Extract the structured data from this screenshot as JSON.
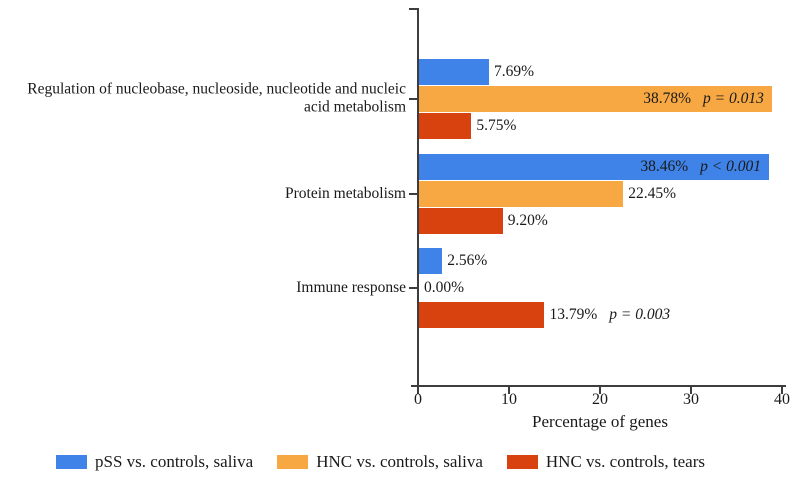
{
  "chart_data": {
    "type": "bar",
    "orientation": "horizontal",
    "title": "",
    "xlabel": "Percentage of genes",
    "xlim": [
      0,
      40
    ],
    "xticks": [
      "0",
      "10",
      "20",
      "30",
      "40"
    ],
    "grid": false,
    "legend_position": "bottom",
    "categories": [
      "Regulation of nucleobase, nucleoside, nucleotide and nucleic acid metabolism",
      "Protein metabolism",
      "Immune response"
    ],
    "series": [
      {
        "name": "pSS vs. controls, saliva",
        "color": "#3F83E8",
        "values": [
          7.69,
          38.46,
          2.56
        ],
        "labels": [
          "7.69%",
          "38.46%",
          "2.56%"
        ],
        "p_values": [
          "",
          "p < 0.001",
          ""
        ],
        "label_inside": [
          false,
          true,
          false
        ]
      },
      {
        "name": "HNC vs. controls, saliva",
        "color": "#F8A843",
        "values": [
          38.78,
          22.45,
          0.0
        ],
        "labels": [
          "38.78%",
          "22.45%",
          "0.00%"
        ],
        "p_values": [
          "p = 0.013",
          "",
          ""
        ],
        "label_inside": [
          true,
          false,
          false
        ]
      },
      {
        "name": "HNC vs. controls, tears",
        "color": "#D8420F",
        "values": [
          5.75,
          9.2,
          13.79
        ],
        "labels": [
          "5.75%",
          "9.20%",
          "13.79%"
        ],
        "p_values": [
          "",
          "",
          "p = 0.003"
        ],
        "label_inside": [
          false,
          false,
          false
        ]
      }
    ],
    "colors": {
      "axis": "#3d3d3d",
      "text": "#1a1a1a",
      "background": "#ffffff"
    }
  }
}
